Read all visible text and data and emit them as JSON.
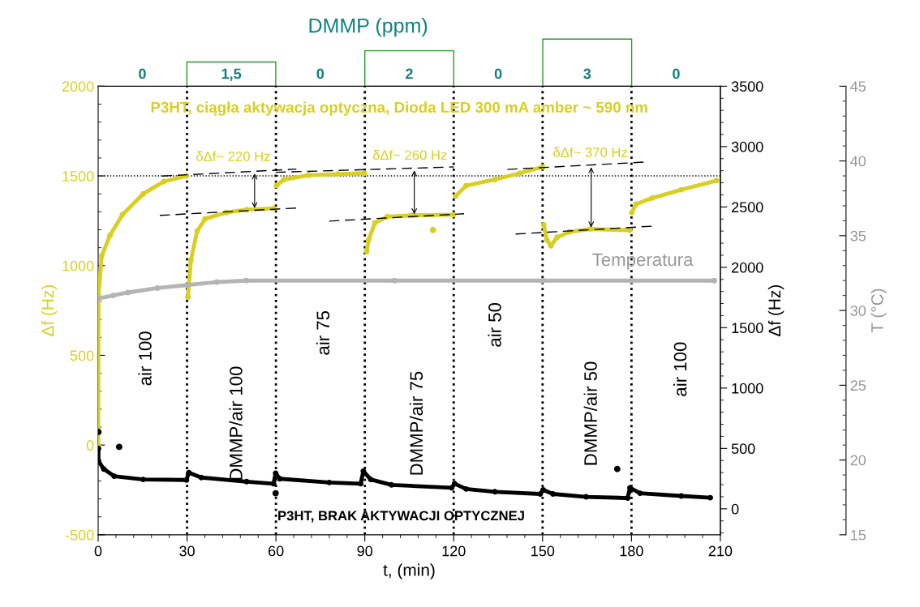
{
  "chart_data": {
    "type": "line",
    "title": "DMMP (ppm)",
    "xlabel": "t, (min)",
    "ylabel": "Δf (Hz)",
    "y2label": "Δf (Hz)",
    "y3label": "T (°C)",
    "xlim": [
      0,
      210
    ],
    "xticks": [
      0,
      30,
      60,
      90,
      120,
      150,
      180,
      210
    ],
    "ylim": [
      -500,
      2000
    ],
    "yticks": [
      -500,
      0,
      500,
      1000,
      1500,
      2000
    ],
    "y2lim": [
      -215,
      3500
    ],
    "y2ticks": [
      0,
      500,
      1000,
      1500,
      2000,
      2500,
      3000,
      3500
    ],
    "y3lim": [
      15,
      45
    ],
    "y3ticks": [
      15,
      20,
      25,
      30,
      35,
      40,
      45
    ],
    "grid": false,
    "legend": false,
    "marker": "circle",
    "series": [
      {
        "name": "P3HT, ciągła aktywacja optyczna, Dioda LED 300 mA amber ~ 590 nm",
        "color": "#d8cf22",
        "x": [
          0,
          0.1,
          1.2,
          4.0,
          8.2,
          15.2,
          22.2,
          29.7,
          30,
          30.3,
          31.3,
          33.4,
          36.1,
          43.2,
          50.1,
          59.2,
          60,
          60.2,
          62.7,
          71.1,
          80.9,
          89.9,
          90,
          90.6,
          91.3,
          93.4,
          97.6,
          106,
          119.9,
          120,
          120.7,
          124.2,
          133.9,
          142.3,
          150,
          150.2,
          150.4,
          151.4,
          152.8,
          154.9,
          159.1,
          166.1,
          179.4,
          180,
          180.1,
          181.5,
          187,
          196.8,
          208.7
        ],
        "values": [
          0,
          835,
          1054,
          1169,
          1284,
          1400,
          1469,
          1500,
          null,
          825,
          1031,
          1192,
          1261,
          1296,
          1312,
          1319,
          null,
          1446,
          1480,
          1504,
          1510,
          1515,
          null,
          1078,
          1145,
          1238,
          1273,
          1280,
          1284,
          null,
          1388,
          1446,
          1480,
          1515,
          1550,
          null,
          1227,
          1145,
          1111,
          1158,
          1188,
          1204,
          1197,
          null,
          1296,
          1342,
          1377,
          1423,
          1474
        ]
      },
      {
        "type": "scatter",
        "color": "#d8cf22",
        "x": [
          113
        ],
        "values": [
          1199
        ]
      },
      {
        "name": "P3HT, BRAK AKTYWACJI OPTYCZNEJ",
        "axis": "y2",
        "color": "#000000",
        "x": [
          0.1,
          0.1,
          1.9,
          5.4,
          15.2,
          29.8,
          30.6,
          34.8,
          50.1,
          59.2,
          59.9,
          61.3,
          78,
          88.6,
          89.5,
          92,
          99,
          119.3,
          120.3,
          124.2,
          133.9,
          149.2,
          150.2,
          153.5,
          164.7,
          178.7,
          179.5,
          182.9,
          196.8,
          206.6
        ],
        "values": [
          499,
          396,
          329,
          270,
          243,
          239,
          300,
          259,
          225,
          208,
          294,
          249,
          218,
          208,
          311,
          243,
          198,
          174,
          208,
          164,
          141,
          123,
          157,
          123,
          99,
          89,
          174,
          129,
          106,
          92
        ]
      },
      {
        "type": "scatter",
        "axis": "y2",
        "color": "#000000",
        "x": [
          0.1,
          7.1,
          59.9,
          175.2
        ],
        "values": [
          637,
          513,
          129,
          329
        ]
      },
      {
        "name": "Temperatura",
        "axis": "y3",
        "color": "#b4b4b4",
        "x": [
          0,
          5,
          10,
          20,
          30,
          40,
          50,
          100,
          150,
          180,
          208
        ],
        "values": [
          30.8,
          31.0,
          31.2,
          31.5,
          31.7,
          31.9,
          32.0,
          32.0,
          32.0,
          32.0,
          32.0
        ]
      },
      {
        "color": "#000000",
        "line_style": "dashed",
        "marker": "none",
        "x": [
          21.5,
          66.9
        ],
        "values": [
          1499,
          1538
        ]
      },
      {
        "color": "#000000",
        "line_style": "dashed",
        "marker": "none",
        "x": [
          20.8,
          66.9
        ],
        "values": [
          1280,
          1321
        ]
      },
      {
        "color": "#000000",
        "line_style": "dashed",
        "marker": "none",
        "x": [
          59.9,
          120
        ],
        "values": [
          1520,
          1550
        ]
      },
      {
        "color": "#000000",
        "line_style": "dashed",
        "marker": "none",
        "x": [
          78,
          123.5
        ],
        "values": [
          1248,
          1289
        ]
      },
      {
        "color": "#000000",
        "line_style": "dashed",
        "marker": "none",
        "x": [
          138.1,
          184.3
        ],
        "values": [
          1536,
          1577
        ]
      },
      {
        "color": "#000000",
        "line_style": "dashed",
        "marker": "none",
        "x": [
          140.9,
          187
        ],
        "values": [
          1176,
          1220
        ]
      }
    ],
    "ref_lines": [
      {
        "axis": "y",
        "value": 1500,
        "color": "#000000",
        "line_style": "dotted"
      },
      {
        "axis": "x",
        "value": 30,
        "color": "#000000",
        "line_style": "dotted"
      },
      {
        "axis": "x",
        "value": 60,
        "color": "#000000",
        "line_style": "dotted"
      },
      {
        "axis": "x",
        "value": 90,
        "color": "#000000",
        "line_style": "dotted"
      },
      {
        "axis": "x",
        "value": 120,
        "color": "#000000",
        "line_style": "dotted"
      },
      {
        "axis": "x",
        "value": 150,
        "color": "#000000",
        "line_style": "dotted"
      },
      {
        "axis": "x",
        "value": 180,
        "color": "#000000",
        "line_style": "dotted"
      }
    ],
    "annotations": [
      {
        "text": "δΔf~ 220 Hz",
        "x": 52.8,
        "y": 1526
      },
      {
        "text": "δΔf~ 260 Hz",
        "x": 106.7,
        "y": 1543
      },
      {
        "text": "δΔf~ 370 Hz",
        "x": 166.4,
        "y": 1561
      },
      "air 100",
      "DMMP/air 100",
      "air 75",
      "DMMP/air 75",
      "air 50",
      "DMMP/air 50",
      "air 100",
      "0",
      "0",
      "0",
      "0",
      "1,5",
      "2",
      "3"
    ]
  }
}
